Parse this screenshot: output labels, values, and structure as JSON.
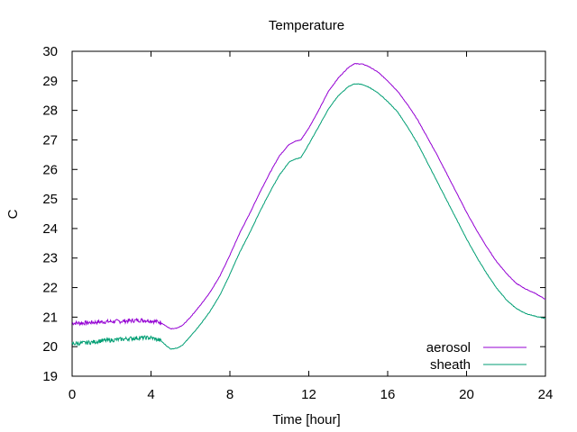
{
  "chart_data": {
    "type": "line",
    "title": "Temperature",
    "xlabel": "Time [hour]",
    "ylabel": "C",
    "xlim": [
      0,
      24
    ],
    "ylim": [
      19,
      30
    ],
    "x_ticks": [
      "0",
      "4",
      "8",
      "12",
      "16",
      "20",
      "24"
    ],
    "y_ticks": [
      "19",
      "20",
      "21",
      "22",
      "23",
      "24",
      "25",
      "26",
      "27",
      "28",
      "29",
      "30"
    ],
    "grid": false,
    "legend_position": "bottom-right",
    "series": [
      {
        "name": "aerosol",
        "color": "#9400d3",
        "noise_until": 4.5,
        "x": [
          0,
          0.5,
          1,
          1.5,
          2,
          2.5,
          3,
          3.5,
          4,
          4.5,
          4.8,
          5,
          5.3,
          5.6,
          6,
          6.5,
          7,
          7.5,
          8,
          8.5,
          9,
          9.5,
          10,
          10.5,
          11,
          11.3,
          11.6,
          12,
          12.5,
          13,
          13.5,
          14,
          14.3,
          14.7,
          15,
          15.5,
          16,
          16.5,
          17,
          17.5,
          18,
          18.5,
          19,
          19.5,
          20,
          20.5,
          21,
          21.5,
          22,
          22.5,
          23,
          23.5,
          24
        ],
        "values": [
          20.8,
          20.8,
          20.82,
          20.84,
          20.85,
          20.86,
          20.88,
          20.9,
          20.88,
          20.82,
          20.68,
          20.6,
          20.62,
          20.72,
          21.0,
          21.4,
          21.85,
          22.4,
          23.1,
          23.85,
          24.5,
          25.2,
          25.85,
          26.45,
          26.85,
          26.95,
          27.0,
          27.4,
          28.0,
          28.65,
          29.1,
          29.45,
          29.58,
          29.57,
          29.5,
          29.3,
          29.0,
          28.65,
          28.2,
          27.7,
          27.1,
          26.5,
          25.85,
          25.2,
          24.55,
          23.95,
          23.4,
          22.9,
          22.5,
          22.15,
          21.95,
          21.8,
          21.6
        ]
      },
      {
        "name": "sheath",
        "color": "#009e73",
        "noise_until": 4.5,
        "x": [
          0,
          0.5,
          1,
          1.5,
          2,
          2.5,
          3,
          3.5,
          4,
          4.5,
          4.8,
          5,
          5.3,
          5.6,
          6,
          6.5,
          7,
          7.5,
          8,
          8.5,
          9,
          9.5,
          10,
          10.5,
          11,
          11.3,
          11.6,
          12,
          12.5,
          13,
          13.5,
          14,
          14.3,
          14.7,
          15,
          15.5,
          16,
          16.5,
          17,
          17.5,
          18,
          18.5,
          19,
          19.5,
          20,
          20.5,
          21,
          21.5,
          22,
          22.5,
          23,
          23.5,
          24
        ],
        "values": [
          20.1,
          20.12,
          20.15,
          20.2,
          20.22,
          20.25,
          20.28,
          20.3,
          20.3,
          20.2,
          20.02,
          19.92,
          19.95,
          20.05,
          20.35,
          20.75,
          21.2,
          21.75,
          22.45,
          23.2,
          23.85,
          24.55,
          25.2,
          25.8,
          26.25,
          26.35,
          26.4,
          26.85,
          27.45,
          28.05,
          28.5,
          28.8,
          28.9,
          28.88,
          28.8,
          28.6,
          28.3,
          27.95,
          27.45,
          26.9,
          26.25,
          25.6,
          24.95,
          24.3,
          23.65,
          23.05,
          22.5,
          22.0,
          21.6,
          21.3,
          21.12,
          21.03,
          20.95
        ]
      }
    ]
  }
}
